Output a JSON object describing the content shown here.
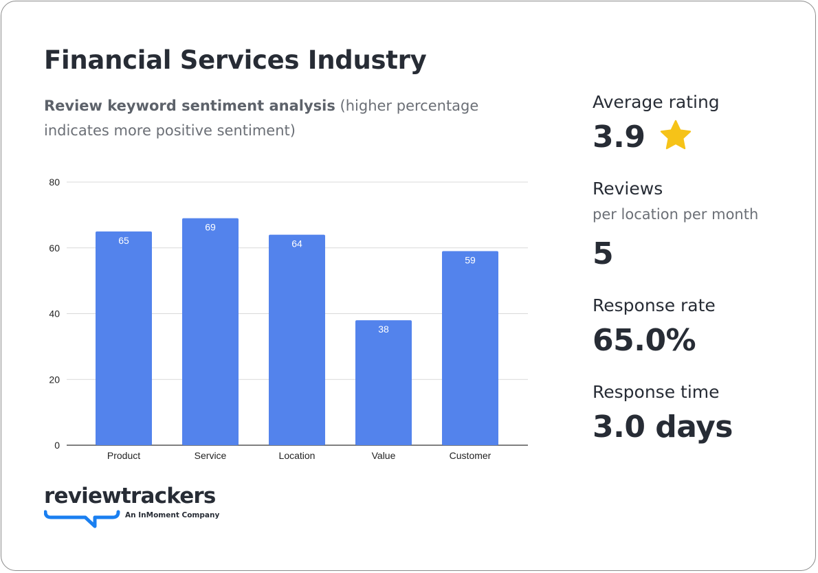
{
  "title": "Financial Services Industry",
  "subtitle_bold": "Review keyword sentiment analysis",
  "subtitle_rest": " (higher percentage indicates more positive sentiment)",
  "stats": {
    "avg_rating_label": "Average rating",
    "avg_rating_value": "3.9",
    "reviews_label": "Reviews",
    "reviews_sub": "per location per month",
    "reviews_value": "5",
    "response_rate_label": "Response rate",
    "response_rate_value": "65.0%",
    "response_time_label": "Response time",
    "response_time_value": "3.0 days"
  },
  "logo": {
    "name": "reviewtrackers",
    "tagline": "An InMoment Company"
  },
  "colors": {
    "bar": "#5383ec",
    "star": "#f6c318",
    "logo_accent": "#1a7ff0"
  },
  "chart_data": {
    "type": "bar",
    "categories": [
      "Product",
      "Service",
      "Location",
      "Value",
      "Customer"
    ],
    "values": [
      65,
      69,
      64,
      38,
      59
    ],
    "yticks": [
      0,
      20,
      40,
      60,
      80
    ],
    "ylim": [
      0,
      80
    ],
    "grid": true,
    "data_labels": true
  }
}
